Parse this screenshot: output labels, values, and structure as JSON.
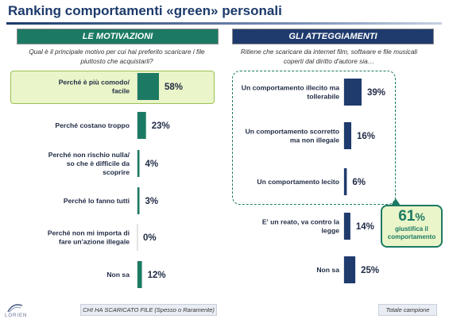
{
  "title": "Ranking comportamenti «green» personali",
  "colors": {
    "green": "#1c7a64",
    "navy": "#1f3b6e",
    "label": "#1f2a44",
    "value": "#1f2a44"
  },
  "chart_data": [
    {
      "type": "bar",
      "title": "LE MOTIVAZIONI",
      "question": "Qual è il principale motivo per cui hai preferito scaricare i file piuttosto che acquistarli?",
      "categories": [
        "Perché è più comodo/ facile",
        "Perché costano troppo",
        "Perché non rischio nulla/ so che è difficile da scoprire",
        "Perché lo fanno tutti",
        "Perché non mi importa di fare un'azione illegale",
        "Non sa"
      ],
      "values": [
        58,
        23,
        4,
        3,
        0,
        12
      ],
      "value_labels": [
        "58%",
        "23%",
        "4%",
        "3%",
        "0%",
        "12%"
      ],
      "highlight": "Perché è più comodo/ facile"
    },
    {
      "type": "bar",
      "title": "GLI ATTEGGIAMENTI",
      "question": "Ritiene che scaricare da internet film, software e file musicali coperti dal diritto d'autore sia…",
      "categories": [
        "Un comportamento illecito ma tollerabile",
        "Un comportamento scorretto ma non illegale",
        "Un comportamento lecito",
        "E' un reato, va contro la legge",
        "Non sa"
      ],
      "values": [
        39,
        16,
        6,
        14,
        25
      ],
      "value_labels": [
        "39%",
        "16%",
        "6%",
        "14%",
        "25%"
      ],
      "callout": {
        "value": "61",
        "unit": "%",
        "text": "giustifica il comportamento"
      }
    }
  ],
  "footer": {
    "left": "CHI HA SCARICATO FILE (Spesso o Raramente)",
    "right": "Totale campione",
    "logo": "LORIEN"
  }
}
